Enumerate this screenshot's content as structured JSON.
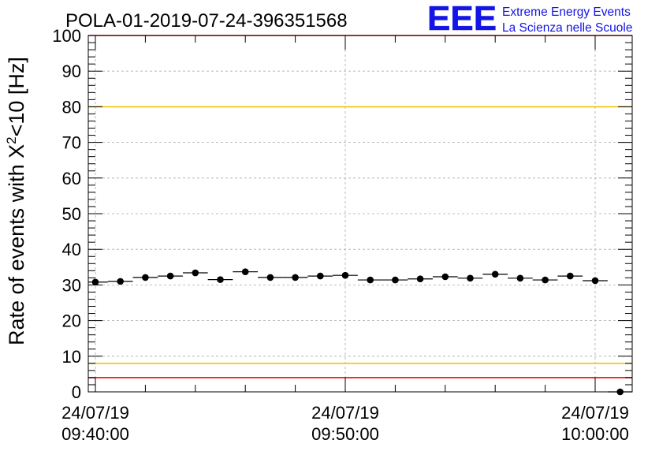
{
  "chart_data": {
    "type": "scatter",
    "title": "POLA-01-2019-07-24-396351568",
    "ylabel_main": "Rate of events with X",
    "ylabel_sup": "2",
    "ylabel_tail": "<10 [Hz]",
    "xlabel": "",
    "ylim": [
      0,
      100
    ],
    "y_ticks": [
      0,
      10,
      20,
      30,
      40,
      50,
      60,
      70,
      80,
      90,
      100
    ],
    "x_tick_labels": [
      {
        "date": "24/07/19",
        "time": "09:40:00"
      },
      {
        "date": "24/07/19",
        "time": "09:50:00"
      },
      {
        "date": "24/07/19",
        "time": "10:00:00"
      }
    ],
    "grid": true,
    "series": [
      {
        "x": [
          "09:40:00",
          "09:41:00",
          "09:42:00",
          "09:43:00",
          "09:44:00",
          "09:45:00",
          "09:46:00",
          "09:47:00",
          "09:48:00",
          "09:49:00",
          "09:50:00",
          "09:51:00",
          "09:52:00",
          "09:53:00",
          "09:54:00",
          "09:55:00",
          "09:56:00",
          "09:57:00",
          "09:58:00",
          "09:59:00",
          "10:00:00",
          "10:01:00"
        ],
        "y": [
          30.8,
          31.0,
          32.1,
          32.5,
          33.4,
          31.5,
          33.7,
          32.1,
          32.1,
          32.5,
          32.7,
          31.4,
          31.4,
          31.7,
          32.3,
          31.9,
          33.0,
          31.9,
          31.4,
          32.5,
          31.2,
          0
        ]
      }
    ],
    "reference_lines": [
      {
        "y": 80,
        "color": "#f0c800"
      },
      {
        "y": 8,
        "color": "#f0c800"
      },
      {
        "y": 4,
        "color": "#ff0000"
      },
      {
        "y": 100,
        "color": "#ff0000"
      }
    ]
  },
  "logo": {
    "mark": "EEE",
    "line1": "Extreme Energy Events",
    "line2": "La Scienza nelle Scuole",
    "color": "#1414e6"
  }
}
